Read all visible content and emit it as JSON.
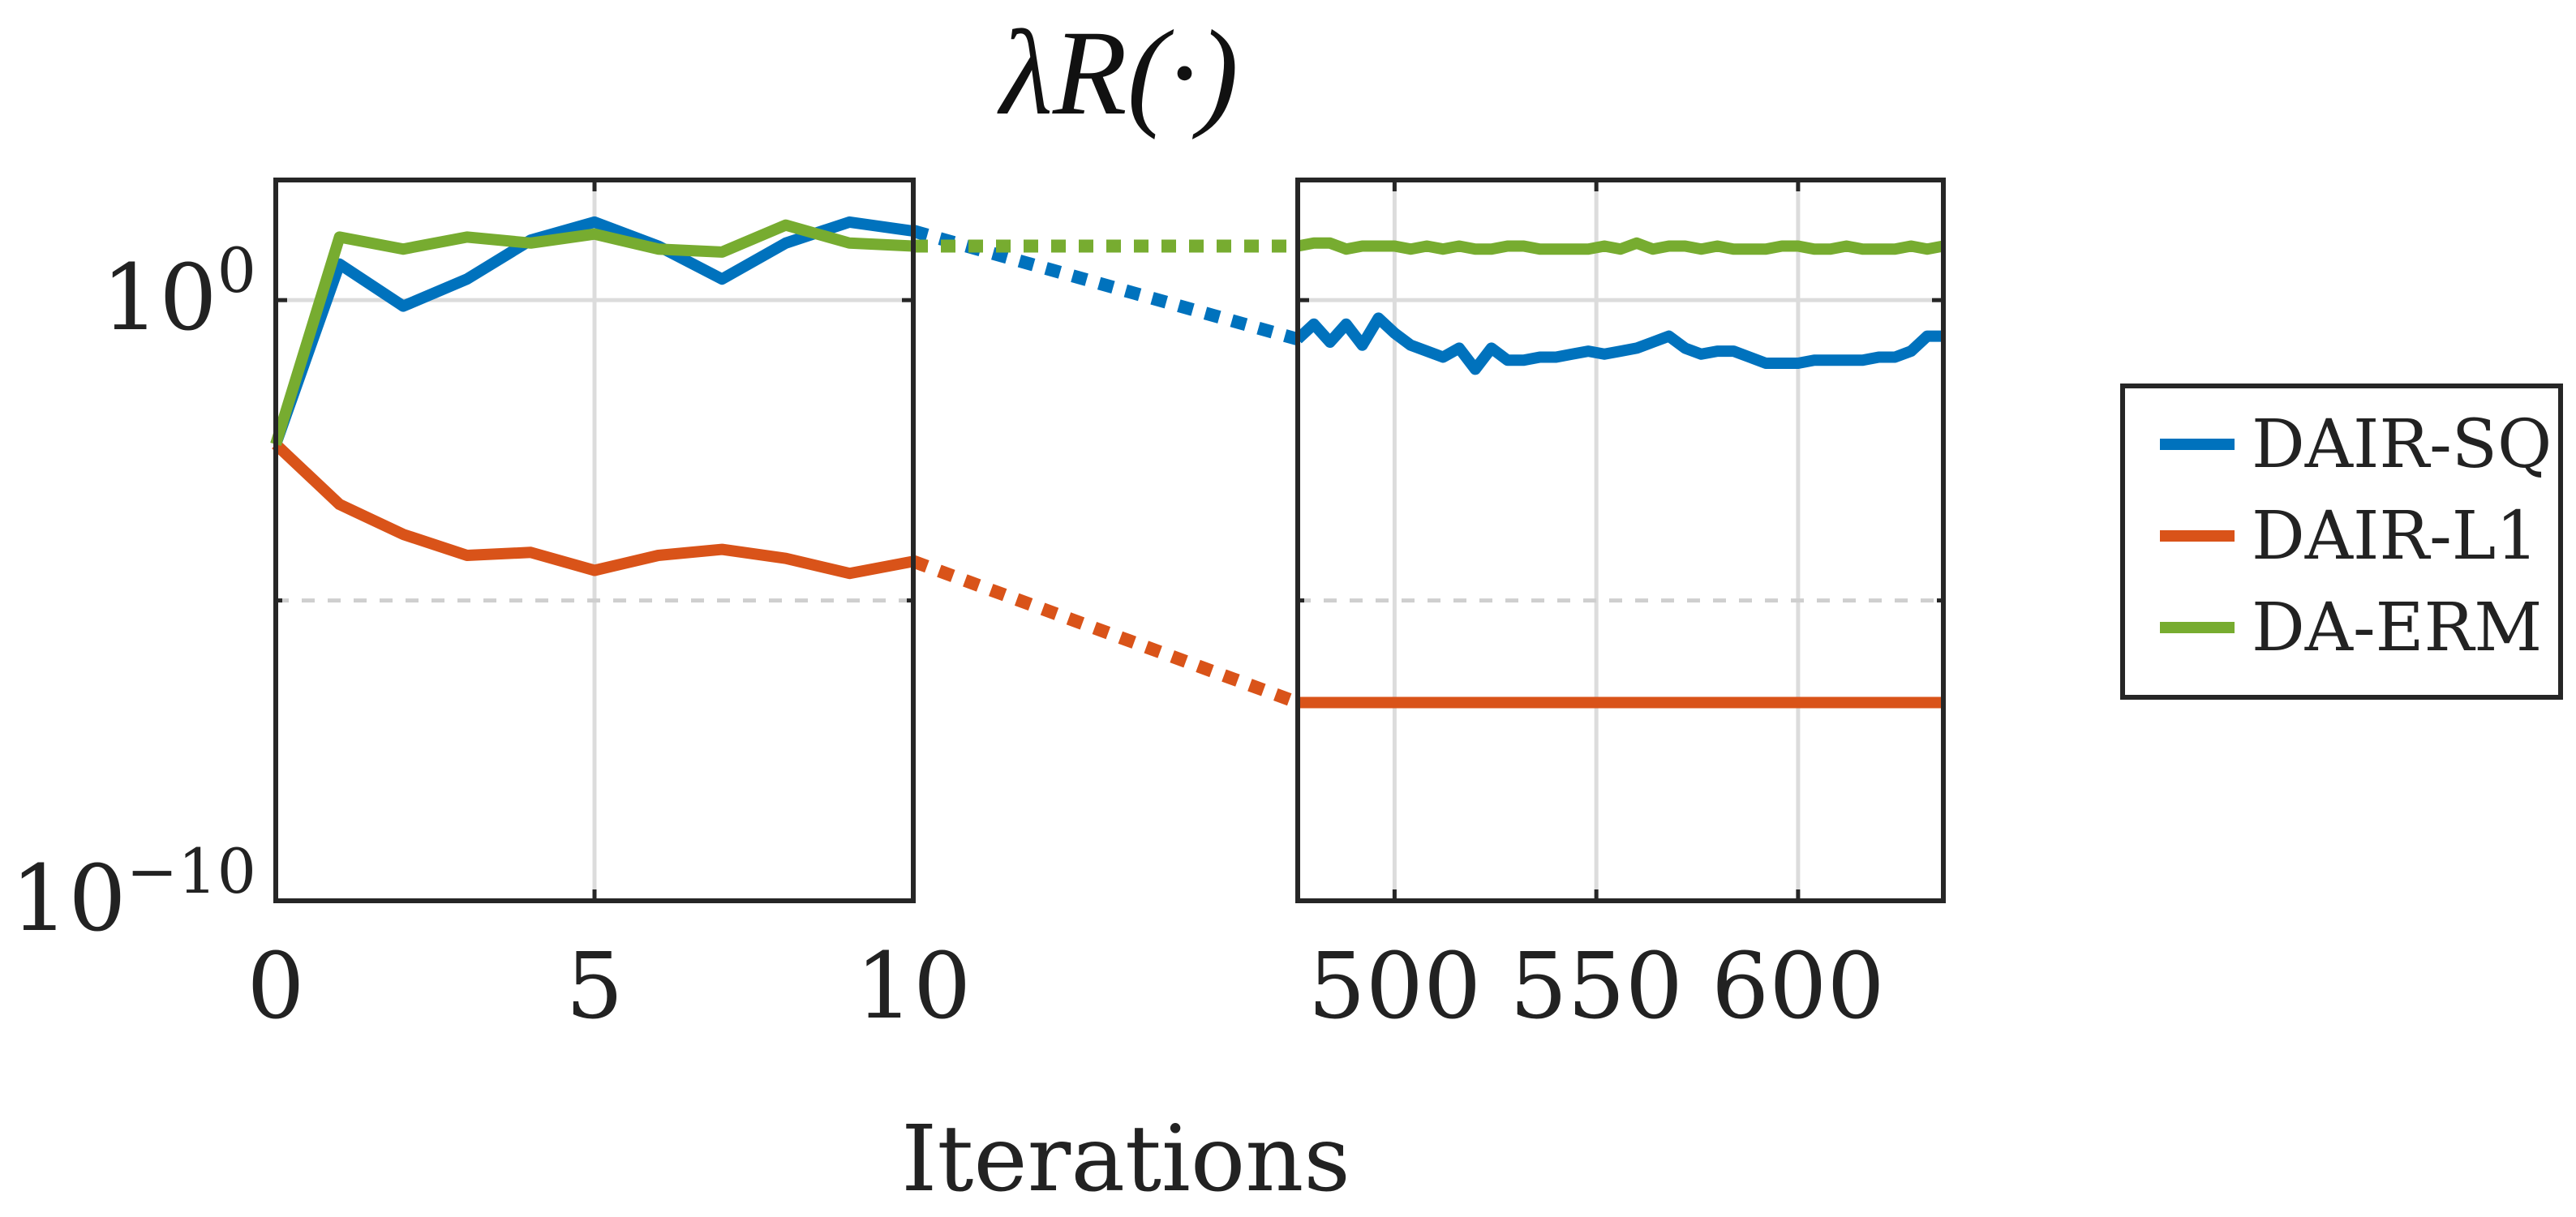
{
  "chart_data": {
    "type": "line",
    "title": "λR(·)",
    "xlabel": "Iterations",
    "ylabel": "",
    "yscale": "log",
    "ylim": [
      1e-10,
      100.0
    ],
    "y_ticks": [
      {
        "value": 1,
        "base": "10",
        "exponent": "0"
      },
      {
        "value": 1e-10,
        "base": "10",
        "exponent": "−10"
      }
    ],
    "grid": true,
    "legend_position": "right",
    "panels": [
      {
        "name": "early",
        "xlim": [
          0,
          10
        ],
        "x_ticks": [
          "0",
          "5",
          "10"
        ],
        "x_tick_values": [
          0,
          5,
          10
        ],
        "grid_x": [
          5
        ],
        "x": [
          0,
          1,
          2,
          3,
          4,
          5,
          6,
          7,
          8,
          9,
          10
        ]
      },
      {
        "name": "late",
        "xlim": [
          476,
          636
        ],
        "x_ticks": [
          "500",
          "550",
          "600"
        ],
        "x_tick_values": [
          500,
          550,
          600
        ],
        "grid_x": [
          500,
          550,
          600
        ],
        "x": [
          476,
          480,
          484,
          488,
          492,
          496,
          500,
          504,
          508,
          512,
          516,
          520,
          524,
          528,
          532,
          536,
          540,
          544,
          548,
          552,
          556,
          560,
          564,
          568,
          572,
          576,
          580,
          584,
          588,
          592,
          596,
          600,
          604,
          608,
          612,
          616,
          620,
          624,
          628,
          632,
          636
        ]
      }
    ],
    "minor_grid_y_dashed": [
      1e-05
    ],
    "series": [
      {
        "name": "DAIR-SQ",
        "color": "#0072BD",
        "early_log10": [
          -2.4,
          0.6,
          -0.1,
          0.35,
          1.0,
          1.3,
          0.9,
          0.35,
          0.95,
          1.3,
          1.15
        ],
        "late_log10": [
          -0.65,
          -0.4,
          -0.7,
          -0.4,
          -0.75,
          -0.3,
          -0.55,
          -0.75,
          -0.85,
          -0.95,
          -0.8,
          -1.15,
          -0.8,
          -1.0,
          -1.0,
          -0.95,
          -0.95,
          -0.9,
          -0.85,
          -0.9,
          -0.85,
          -0.8,
          -0.7,
          -0.6,
          -0.8,
          -0.9,
          -0.85,
          -0.85,
          -0.95,
          -1.05,
          -1.05,
          -1.05,
          -1.0,
          -1.0,
          -1.0,
          -1.0,
          -0.95,
          -0.95,
          -0.85,
          -0.6,
          -0.6
        ],
        "early_to_late_link": [
          1.15,
          -0.65
        ]
      },
      {
        "name": "DAIR-L1",
        "color": "#D95319",
        "early_log10": [
          -2.4,
          -3.4,
          -3.9,
          -4.25,
          -4.2,
          -4.5,
          -4.25,
          -4.15,
          -4.3,
          -4.55,
          -4.35
        ],
        "late_log10": [
          -6.7,
          -6.7,
          -6.7,
          -6.7,
          -6.7,
          -6.7,
          -6.7,
          -6.7,
          -6.7,
          -6.7,
          -6.7,
          -6.7,
          -6.7,
          -6.7,
          -6.7,
          -6.7,
          -6.7,
          -6.7,
          -6.7,
          -6.7,
          -6.7,
          -6.7,
          -6.7,
          -6.7,
          -6.7,
          -6.7,
          -6.7,
          -6.7,
          -6.7,
          -6.7,
          -6.7,
          -6.7,
          -6.7,
          -6.7,
          -6.7,
          -6.7,
          -6.7,
          -6.7,
          -6.7,
          -6.7,
          -6.7
        ],
        "early_to_late_link": [
          -4.35,
          -6.7
        ]
      },
      {
        "name": "DA-ERM",
        "color": "#77AC30",
        "early_log10": [
          -2.4,
          1.05,
          0.85,
          1.05,
          0.95,
          1.1,
          0.85,
          0.8,
          1.25,
          0.95,
          0.9
        ],
        "late_log10": [
          0.9,
          0.95,
          0.95,
          0.85,
          0.9,
          0.9,
          0.9,
          0.85,
          0.9,
          0.85,
          0.9,
          0.85,
          0.85,
          0.9,
          0.9,
          0.85,
          0.85,
          0.85,
          0.85,
          0.9,
          0.85,
          0.95,
          0.85,
          0.9,
          0.9,
          0.85,
          0.9,
          0.85,
          0.85,
          0.85,
          0.9,
          0.9,
          0.85,
          0.85,
          0.9,
          0.85,
          0.85,
          0.85,
          0.9,
          0.85,
          0.9
        ],
        "early_to_late_link": [
          0.9,
          0.9
        ]
      }
    ]
  }
}
